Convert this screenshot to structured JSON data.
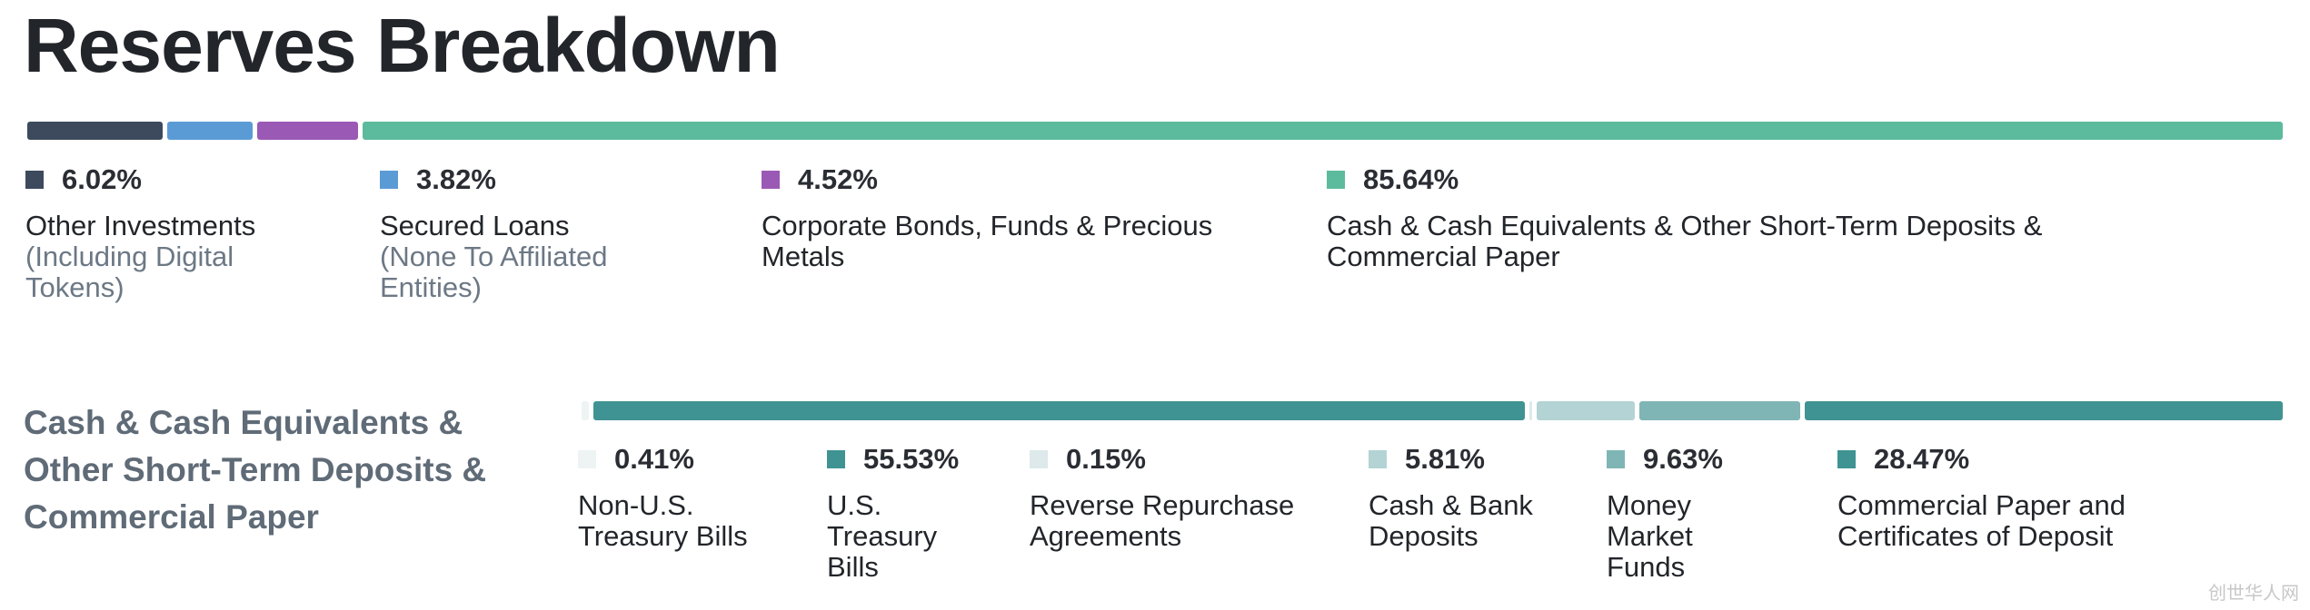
{
  "title": "Reserves Breakdown",
  "chart_data": [
    {
      "type": "bar",
      "title": "Reserves Breakdown",
      "series": [
        {
          "percent": "6.02%",
          "value": 6.02,
          "label": "Other Investments",
          "sublabel": "(Including Digital Tokens)",
          "color": "#3d4a5d"
        },
        {
          "percent": "3.82%",
          "value": 3.82,
          "label": "Secured Loans",
          "sublabel": "(None To Affiliated Entities)",
          "color": "#5b9bd5"
        },
        {
          "percent": "4.52%",
          "value": 4.52,
          "label": "Corporate Bonds, Funds & Precious Metals",
          "sublabel": "",
          "color": "#9b59b6"
        },
        {
          "percent": "85.64%",
          "value": 85.64,
          "label": "Cash & Cash Equivalents & Other Short-Term Deposits & Commercial Paper",
          "sublabel": "",
          "color": "#5dbb9d"
        }
      ]
    },
    {
      "type": "bar",
      "title": "Cash & Cash Equivalents & Other Short-Term Deposits & Commercial Paper",
      "series": [
        {
          "percent": "0.41%",
          "value": 0.41,
          "label": "Non-U.S. Treasury Bills",
          "color": "#eef3f3"
        },
        {
          "percent": "55.53%",
          "value": 55.53,
          "label": "U.S. Treasury Bills",
          "color": "#3f9392"
        },
        {
          "percent": "0.15%",
          "value": 0.15,
          "label": "Reverse Repurchase Agreements",
          "color": "#dde9ea"
        },
        {
          "percent": "5.81%",
          "value": 5.81,
          "label": "Cash & Bank Deposits",
          "color": "#b3d3d4"
        },
        {
          "percent": "9.63%",
          "value": 9.63,
          "label": "Money Market Funds",
          "color": "#7fb5b5"
        },
        {
          "percent": "28.47%",
          "value": 28.47,
          "label": "Commercial Paper and Certificates of Deposit",
          "color": "#3f9392"
        }
      ]
    }
  ],
  "section_title": "Cash & Cash Equivalents & Other Short-Term Deposits & Commercial Paper",
  "watermark": "创世华人网"
}
